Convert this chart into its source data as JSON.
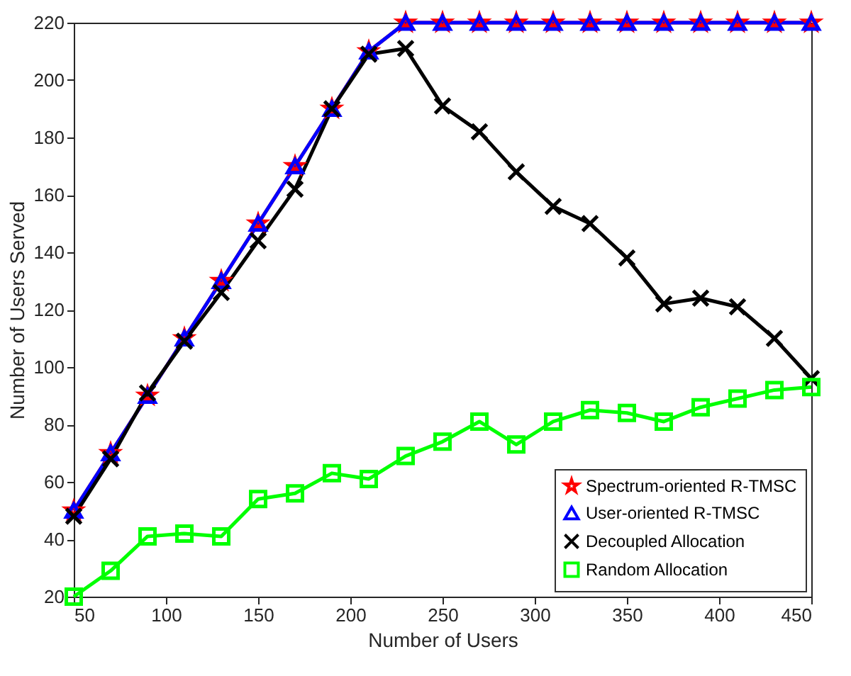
{
  "chart_data": {
    "type": "line",
    "xlabel": "Number of Users",
    "ylabel": "Number of Users Served",
    "x": [
      50,
      70,
      90,
      110,
      130,
      150,
      170,
      190,
      210,
      230,
      250,
      270,
      290,
      310,
      330,
      350,
      370,
      390,
      410,
      430,
      450
    ],
    "series": [
      {
        "name": "Spectrum-oriented R-TMSC",
        "color": "#ff0000",
        "marker": "star",
        "values": [
          50,
          70,
          90,
          110,
          130,
          150,
          170,
          190,
          210,
          220,
          220,
          220,
          220,
          220,
          220,
          220,
          220,
          220,
          220,
          220,
          220
        ]
      },
      {
        "name": "User-oriented R-TMSC",
        "color": "#0000ff",
        "marker": "triangle",
        "values": [
          50,
          70,
          90,
          110,
          130,
          150,
          170,
          190,
          210,
          220,
          220,
          220,
          220,
          220,
          220,
          220,
          220,
          220,
          220,
          220,
          220
        ]
      },
      {
        "name": "Decoupled Allocation",
        "color": "#000000",
        "marker": "cross",
        "values": [
          48,
          68,
          91,
          109,
          126,
          144,
          162,
          190,
          209,
          211,
          191,
          182,
          168,
          156,
          150,
          138,
          122,
          124,
          121,
          110,
          96
        ]
      },
      {
        "name": "Random Allocation",
        "color": "#00ff00",
        "marker": "square",
        "values": [
          20,
          29,
          41,
          42,
          41,
          54,
          56,
          63,
          61,
          69,
          74,
          81,
          73,
          81,
          85,
          84,
          81,
          86,
          89,
          92,
          93
        ]
      }
    ],
    "xlim": [
      50,
      450
    ],
    "xticks": [
      50,
      100,
      150,
      200,
      250,
      300,
      350,
      400,
      450
    ],
    "ylim": [
      20,
      220
    ],
    "yticks": [
      20,
      40,
      60,
      80,
      100,
      120,
      140,
      160,
      180,
      200,
      220
    ],
    "grid": false,
    "legend": "bottom right",
    "line_style": "solid"
  }
}
